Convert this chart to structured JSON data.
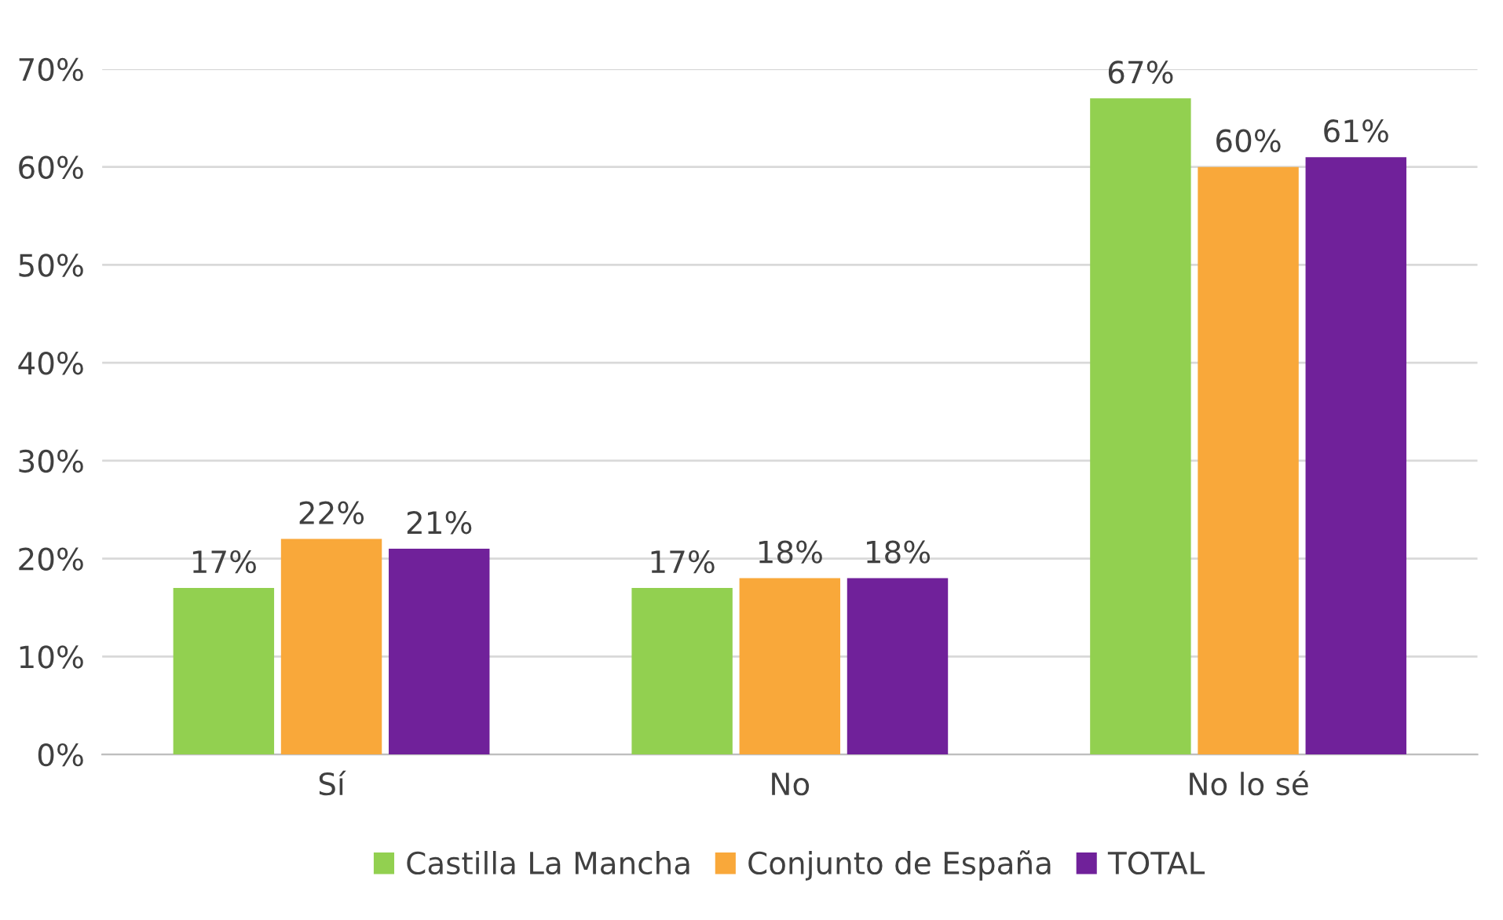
{
  "chart_data": {
    "type": "bar",
    "categories": [
      "Sí",
      "No",
      "No lo sé"
    ],
    "series": [
      {
        "name": "Castilla La Mancha",
        "color": "#92d050",
        "values": [
          17,
          17,
          67
        ]
      },
      {
        "name": "Conjunto de España",
        "color": "#f9a83a",
        "values": [
          22,
          18,
          60
        ]
      },
      {
        "name": "TOTAL",
        "color": "#70219a",
        "values": [
          21,
          18,
          61
        ]
      }
    ],
    "value_labels": [
      [
        "17%",
        "17%",
        "67%"
      ],
      [
        "22%",
        "18%",
        "60%"
      ],
      [
        "21%",
        "18%",
        "61%"
      ]
    ],
    "ylim": [
      0,
      70
    ],
    "yticks": [
      {
        "value": 0,
        "label": "0%"
      },
      {
        "value": 10,
        "label": "10%"
      },
      {
        "value": 20,
        "label": "20%"
      },
      {
        "value": 30,
        "label": "30%"
      },
      {
        "value": 40,
        "label": "40%"
      },
      {
        "value": 50,
        "label": "50%"
      },
      {
        "value": 60,
        "label": "60%"
      },
      {
        "value": 70,
        "label": "70%"
      }
    ],
    "grid": "y",
    "legend": "bottom"
  }
}
